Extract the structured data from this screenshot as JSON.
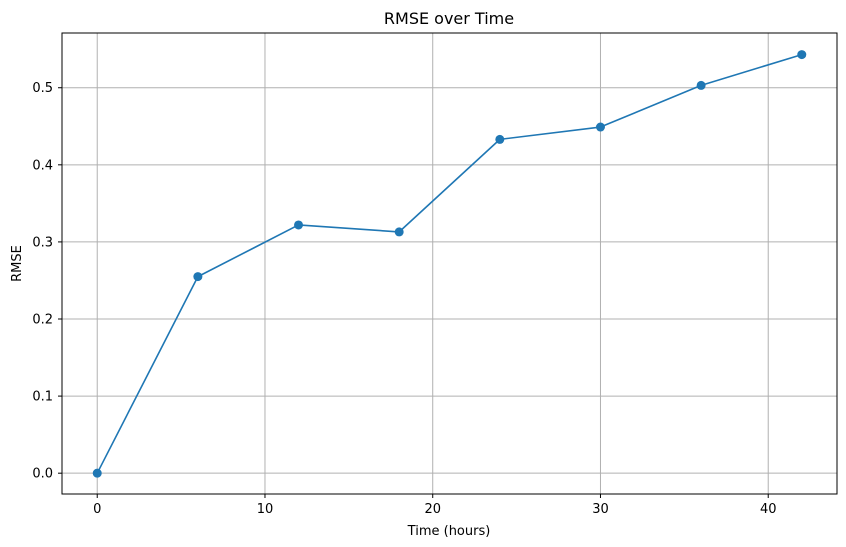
{
  "chart_data": {
    "type": "line",
    "title": "RMSE over Time",
    "xlabel": "Time (hours)",
    "ylabel": "RMSE",
    "xlim": [
      -2.1,
      44.1
    ],
    "ylim": [
      -0.027,
      0.571
    ],
    "xticks": [
      0,
      10,
      20,
      30,
      40
    ],
    "yticks": [
      0.0,
      0.1,
      0.2,
      0.3,
      0.4,
      0.5
    ],
    "grid": true,
    "series": [
      {
        "x": [
          0,
          6,
          12,
          18,
          24,
          30,
          36,
          42
        ],
        "y": [
          0.0,
          0.255,
          0.322,
          0.313,
          0.433,
          0.449,
          0.503,
          0.543
        ],
        "color": "#1f77b4",
        "marker": "circle"
      }
    ]
  }
}
